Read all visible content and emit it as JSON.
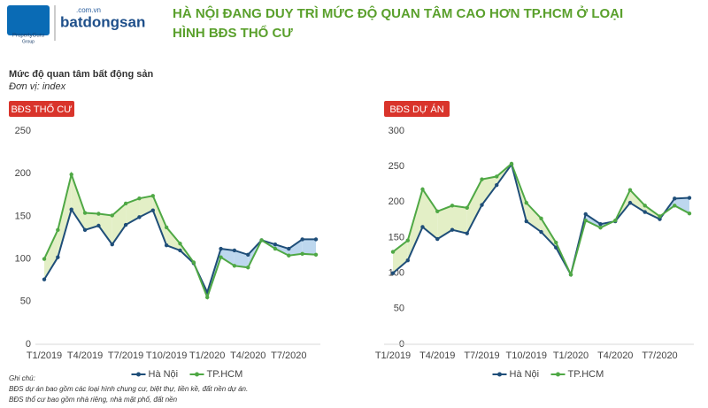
{
  "header": {
    "logo_left": "PropertyGuru",
    "logo_left_sub": "Group",
    "logo_right": "batdongsan",
    "logo_right_domain": ".com.vn",
    "title_line1": "HÀ NỘI ĐANG DUY TRÌ MỨC ĐỘ QUAN TÂM CAO HƠN TP.HCM Ở LOẠI",
    "title_line2": "HÌNH BĐS THỔ CƯ",
    "subtitle": "Mức độ quan tâm bất động sản",
    "unit": "Đơn vị: index"
  },
  "notes": [
    "Ghi chú:",
    "BĐS dự án bao gồm các loại hình chung cư, biệt thự, liền kề, đất nền dự án.",
    "BĐS thổ cư bao gồm nhà riêng, nhà mặt phố, đất nền"
  ],
  "chart_data": [
    {
      "type": "line",
      "title": "BĐS THỔ CƯ",
      "categories": [
        "T1/2019",
        null,
        null,
        "T4/2019",
        null,
        null,
        "T7/2019",
        null,
        null,
        "T10/2019",
        null,
        null,
        "T1/2020",
        null,
        null,
        "T4/2020",
        null,
        null,
        "T7/2020",
        null,
        null
      ],
      "series": [
        {
          "name": "Hà Nội",
          "color": "#1f4e79",
          "values": [
            76,
            102,
            158,
            134,
            139,
            117,
            140,
            149,
            157,
            116,
            110,
            95,
            61,
            112,
            110,
            105,
            122,
            117,
            112,
            123,
            123
          ]
        },
        {
          "name": "TP.HCM",
          "color": "#4fa845",
          "values": [
            100,
            134,
            199,
            154,
            153,
            151,
            165,
            171,
            174,
            137,
            118,
            96,
            55,
            102,
            92,
            90,
            122,
            112,
            104,
            106,
            105
          ]
        }
      ],
      "ylim": [
        0,
        250
      ],
      "yticks": [
        0,
        50,
        100,
        150,
        200,
        250
      ],
      "grid": false,
      "legend": "bottom"
    },
    {
      "type": "line",
      "title": "BĐS DỰ ÁN",
      "categories": [
        "T1/2019",
        null,
        null,
        "T4/2019",
        null,
        null,
        "T7/2019",
        null,
        null,
        "T10/2019",
        null,
        null,
        "T1/2020",
        null,
        null,
        "T4/2020",
        null,
        null,
        "T7/2020",
        null,
        null
      ],
      "series": [
        {
          "name": "Hà Nội",
          "color": "#1f4e79",
          "values": [
            100,
            118,
            165,
            148,
            161,
            156,
            196,
            224,
            253,
            173,
            158,
            136,
            98,
            183,
            169,
            173,
            199,
            186,
            176,
            205,
            206
          ]
        },
        {
          "name": "TP.HCM",
          "color": "#4fa845",
          "values": [
            130,
            146,
            218,
            187,
            195,
            192,
            232,
            236,
            254,
            199,
            177,
            143,
            98,
            174,
            164,
            174,
            217,
            195,
            180,
            195,
            184
          ]
        }
      ],
      "ylim": [
        0,
        300
      ],
      "yticks": [
        0,
        50,
        100,
        150,
        200,
        250,
        300
      ],
      "grid": false,
      "legend": "bottom"
    }
  ]
}
